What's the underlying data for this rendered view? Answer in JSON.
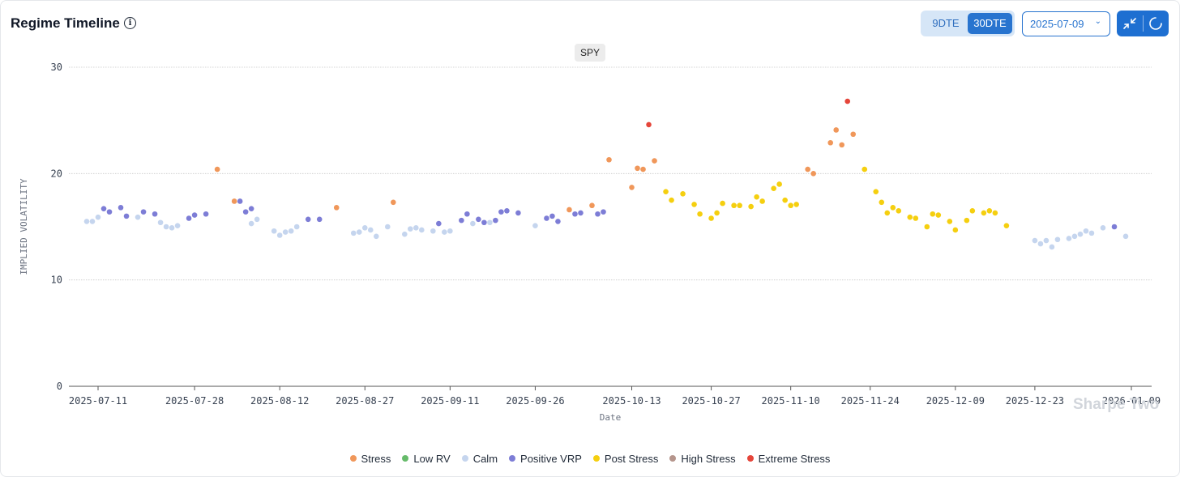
{
  "header": {
    "title": "Regime Timeline",
    "info_icon": "info-icon",
    "dte_options": [
      "9DTE",
      "30DTE"
    ],
    "dte_selected": "30DTE",
    "date_value": "2025-07-09",
    "collapse_icon": "collapse-icon",
    "refresh_icon": "refresh-icon"
  },
  "symbol_label": "SPY",
  "watermark": "Sharpe Two",
  "colors": {
    "Stress": "#f0975a",
    "Low RV": "#66bb6a",
    "Calm": "#c5d5ee",
    "Positive VRP": "#7d7dd6",
    "Post Stress": "#f5cf0f",
    "High Stress": "#b5958c",
    "Extreme Stress": "#e5453a"
  },
  "chart_data": {
    "type": "scatter",
    "title": "",
    "xlabel": "Date",
    "ylabel": "IMPLIED VOLATILITY",
    "ylim": [
      0,
      30
    ],
    "yticks": [
      0,
      10,
      20,
      30
    ],
    "xticks": [
      "2025-07-11",
      "2025-07-28",
      "2025-08-12",
      "2025-08-27",
      "2025-09-11",
      "2025-09-26",
      "2025-10-13",
      "2025-10-27",
      "2025-11-10",
      "2025-11-24",
      "2025-12-09",
      "2025-12-23",
      "2026-01-09"
    ],
    "grid": true,
    "legend": "bottom-center",
    "series": [
      {
        "name": "Stress",
        "points": [
          [
            "2025-08-01",
            20.4
          ],
          [
            "2025-08-04",
            17.4
          ],
          [
            "2025-08-22",
            16.8
          ],
          [
            "2025-09-01",
            17.3
          ],
          [
            "2025-10-02",
            16.6
          ],
          [
            "2025-10-06",
            17.0
          ],
          [
            "2025-10-09",
            21.3
          ],
          [
            "2025-10-13",
            18.7
          ],
          [
            "2025-10-14",
            20.5
          ],
          [
            "2025-10-15",
            20.4
          ],
          [
            "2025-10-17",
            21.2
          ],
          [
            "2025-11-13",
            20.4
          ],
          [
            "2025-11-14",
            20.0
          ],
          [
            "2025-11-17",
            22.9
          ],
          [
            "2025-11-18",
            24.1
          ],
          [
            "2025-11-19",
            22.7
          ],
          [
            "2025-11-21",
            23.7
          ]
        ]
      },
      {
        "name": "Low RV",
        "points": []
      },
      {
        "name": "Calm",
        "points": [
          [
            "2025-07-09",
            15.5
          ],
          [
            "2025-07-10",
            15.5
          ],
          [
            "2025-07-11",
            15.9
          ],
          [
            "2025-07-18",
            15.9
          ],
          [
            "2025-07-22",
            15.4
          ],
          [
            "2025-07-23",
            15.0
          ],
          [
            "2025-07-24",
            14.9
          ],
          [
            "2025-07-25",
            15.1
          ],
          [
            "2025-08-07",
            15.3
          ],
          [
            "2025-08-08",
            15.7
          ],
          [
            "2025-08-11",
            14.6
          ],
          [
            "2025-08-12",
            14.2
          ],
          [
            "2025-08-13",
            14.5
          ],
          [
            "2025-08-14",
            14.6
          ],
          [
            "2025-08-15",
            15.0
          ],
          [
            "2025-08-25",
            14.4
          ],
          [
            "2025-08-26",
            14.5
          ],
          [
            "2025-08-27",
            14.9
          ],
          [
            "2025-08-28",
            14.7
          ],
          [
            "2025-08-29",
            14.1
          ],
          [
            "2025-08-31",
            15.0
          ],
          [
            "2025-09-03",
            14.3
          ],
          [
            "2025-09-04",
            14.8
          ],
          [
            "2025-09-05",
            14.9
          ],
          [
            "2025-09-06",
            14.7
          ],
          [
            "2025-09-08",
            14.6
          ],
          [
            "2025-09-10",
            14.5
          ],
          [
            "2025-09-11",
            14.6
          ],
          [
            "2025-09-15",
            15.3
          ],
          [
            "2025-09-18",
            15.4
          ],
          [
            "2025-09-26",
            15.1
          ],
          [
            "2025-12-23",
            13.7
          ],
          [
            "2025-12-24",
            13.4
          ],
          [
            "2025-12-25",
            13.7
          ],
          [
            "2025-12-26",
            13.1
          ],
          [
            "2025-12-27",
            13.8
          ],
          [
            "2025-12-29",
            13.9
          ],
          [
            "2025-12-30",
            14.1
          ],
          [
            "2025-12-31",
            14.3
          ],
          [
            "2026-01-01",
            14.6
          ],
          [
            "2026-01-02",
            14.4
          ],
          [
            "2026-01-04",
            14.9
          ],
          [
            "2026-01-08",
            14.1
          ]
        ]
      },
      {
        "name": "Positive VRP",
        "points": [
          [
            "2025-07-12",
            16.7
          ],
          [
            "2025-07-13",
            16.4
          ],
          [
            "2025-07-15",
            16.8
          ],
          [
            "2025-07-16",
            16.0
          ],
          [
            "2025-07-19",
            16.4
          ],
          [
            "2025-07-21",
            16.2
          ],
          [
            "2025-07-27",
            15.8
          ],
          [
            "2025-07-28",
            16.1
          ],
          [
            "2025-07-30",
            16.2
          ],
          [
            "2025-08-05",
            17.4
          ],
          [
            "2025-08-06",
            16.4
          ],
          [
            "2025-08-07",
            16.7
          ],
          [
            "2025-08-17",
            15.7
          ],
          [
            "2025-08-19",
            15.7
          ],
          [
            "2025-09-09",
            15.3
          ],
          [
            "2025-09-13",
            15.6
          ],
          [
            "2025-09-14",
            16.2
          ],
          [
            "2025-09-16",
            15.7
          ],
          [
            "2025-09-17",
            15.4
          ],
          [
            "2025-09-19",
            15.6
          ],
          [
            "2025-09-20",
            16.4
          ],
          [
            "2025-09-21",
            16.5
          ],
          [
            "2025-09-23",
            16.3
          ],
          [
            "2025-09-28",
            15.8
          ],
          [
            "2025-09-29",
            16.0
          ],
          [
            "2025-09-30",
            15.5
          ],
          [
            "2025-10-03",
            16.2
          ],
          [
            "2025-10-04",
            16.3
          ],
          [
            "2025-10-07",
            16.2
          ],
          [
            "2025-10-08",
            16.4
          ],
          [
            "2026-01-06",
            15.0
          ]
        ]
      },
      {
        "name": "Post Stress",
        "points": [
          [
            "2025-10-19",
            18.3
          ],
          [
            "2025-10-20",
            17.5
          ],
          [
            "2025-10-22",
            18.1
          ],
          [
            "2025-10-24",
            17.1
          ],
          [
            "2025-10-25",
            16.2
          ],
          [
            "2025-10-27",
            15.8
          ],
          [
            "2025-10-28",
            16.3
          ],
          [
            "2025-10-29",
            17.2
          ],
          [
            "2025-10-31",
            17.0
          ],
          [
            "2025-11-01",
            17.0
          ],
          [
            "2025-11-03",
            16.9
          ],
          [
            "2025-11-04",
            17.8
          ],
          [
            "2025-11-05",
            17.4
          ],
          [
            "2025-11-07",
            18.6
          ],
          [
            "2025-11-08",
            19.0
          ],
          [
            "2025-11-09",
            17.5
          ],
          [
            "2025-11-10",
            17.0
          ],
          [
            "2025-11-11",
            17.1
          ],
          [
            "2025-11-23",
            20.4
          ],
          [
            "2025-11-25",
            18.3
          ],
          [
            "2025-11-26",
            17.3
          ],
          [
            "2025-11-27",
            16.3
          ],
          [
            "2025-11-28",
            16.8
          ],
          [
            "2025-11-29",
            16.5
          ],
          [
            "2025-12-01",
            15.9
          ],
          [
            "2025-12-02",
            15.8
          ],
          [
            "2025-12-04",
            15.0
          ],
          [
            "2025-12-05",
            16.2
          ],
          [
            "2025-12-06",
            16.1
          ],
          [
            "2025-12-08",
            15.5
          ],
          [
            "2025-12-09",
            14.7
          ],
          [
            "2025-12-11",
            15.6
          ],
          [
            "2025-12-12",
            16.5
          ],
          [
            "2025-12-14",
            16.3
          ],
          [
            "2025-12-15",
            16.5
          ],
          [
            "2025-12-16",
            16.3
          ],
          [
            "2025-12-18",
            15.1
          ]
        ]
      },
      {
        "name": "High Stress",
        "points": []
      },
      {
        "name": "Extreme Stress",
        "points": [
          [
            "2025-10-16",
            24.6
          ],
          [
            "2025-11-20",
            26.8
          ]
        ]
      }
    ]
  }
}
